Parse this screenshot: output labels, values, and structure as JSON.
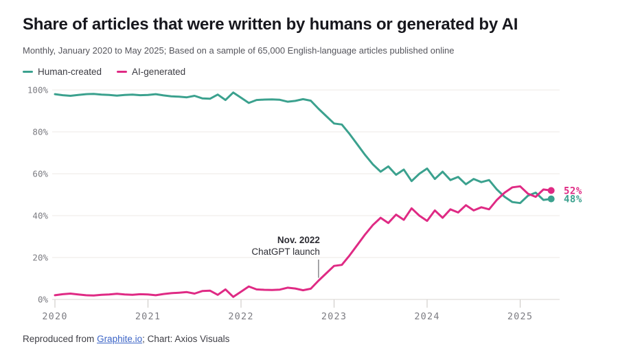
{
  "chart_data": {
    "type": "line",
    "title": "Share of articles that were written by humans or generated by AI",
    "subtitle": "Monthly, January 2020 to May 2025; Based on a sample of 65,000 English-language articles published online",
    "x_unit": "month",
    "x_range": [
      "2020-01",
      "2025-05"
    ],
    "points_per_year": 12,
    "x_tick_labels": [
      "2020",
      "2021",
      "2022",
      "2023",
      "2024",
      "2025"
    ],
    "x_tick_indices": [
      0,
      12,
      24,
      36,
      48,
      60
    ],
    "y_ticks": [
      0,
      20,
      40,
      60,
      80,
      100
    ],
    "y_tick_suffix": "%",
    "ylim": [
      0,
      100
    ],
    "grid": "horizontal",
    "legend_position": "top-left",
    "series": [
      {
        "name": "Human-created",
        "color": "#3ba18e",
        "end_label": "48%",
        "values": [
          98,
          97.5,
          97.2,
          97.6,
          98,
          98.1,
          97.8,
          97.6,
          97.3,
          97.6,
          97.8,
          97.5,
          97.6,
          98,
          97.4,
          97,
          96.8,
          96.5,
          97.2,
          96,
          95.8,
          97.8,
          95.2,
          98.8,
          96.3,
          93.8,
          95.2,
          95.4,
          95.5,
          95.3,
          94.4,
          94.8,
          95.6,
          94.9,
          91,
          87.5,
          84,
          83.5,
          79,
          74,
          69,
          64.5,
          61,
          63.5,
          59.5,
          62,
          56.5,
          60,
          62.5,
          57.5,
          61,
          57,
          58.5,
          55,
          57.5,
          56,
          57,
          52.5,
          49,
          46.5,
          46,
          49.5,
          51,
          47.5,
          48
        ]
      },
      {
        "name": "AI-generated",
        "color": "#df2a84",
        "end_label": "52%",
        "values": [
          2,
          2.5,
          2.8,
          2.4,
          2,
          1.9,
          2.2,
          2.4,
          2.7,
          2.4,
          2.2,
          2.5,
          2.4,
          2,
          2.6,
          3,
          3.2,
          3.5,
          2.8,
          4,
          4.2,
          2.2,
          4.8,
          1.2,
          3.7,
          6.2,
          4.8,
          4.6,
          4.5,
          4.7,
          5.6,
          5.2,
          4.4,
          5.1,
          9,
          12.5,
          16,
          16.5,
          21,
          26,
          31,
          35.5,
          39,
          36.5,
          40.5,
          38,
          43.5,
          40,
          37.5,
          42.5,
          39,
          43,
          41.5,
          45,
          42.5,
          44,
          43,
          47.5,
          51,
          53.5,
          54,
          50.5,
          49,
          52.5,
          52
        ]
      }
    ],
    "annotation": {
      "text_line1": "Nov. 2022",
      "text_line2": "ChatGPT launch",
      "point_index": 34,
      "series": "AI-generated"
    }
  },
  "footer": {
    "prefix": "Reproduced from ",
    "link_label": "Graphite.io",
    "suffix": "; Chart: Axios Visuals"
  }
}
